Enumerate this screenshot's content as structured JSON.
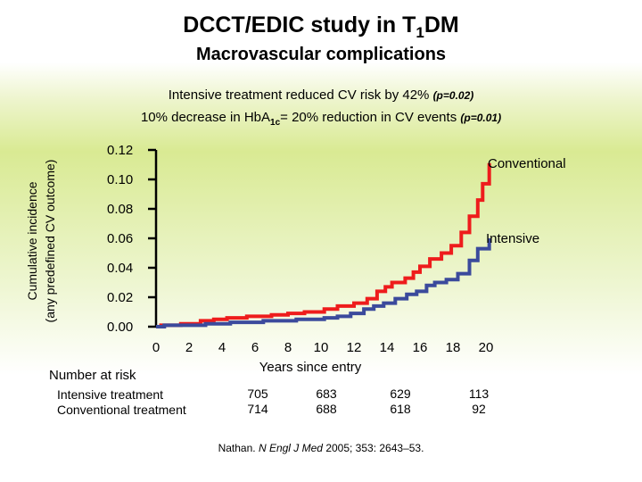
{
  "header": {
    "title_main": "DCCT/EDIC study in T",
    "title_sub": "1",
    "title_end": "DM",
    "subtitle": "Macrovascular complications"
  },
  "notes": {
    "line1_main": "Intensive treatment reduced CV risk by 42%",
    "line1_p": "(p=0.02)",
    "line2_a": "10% decrease in HbA",
    "line2_sub": "1c",
    "line2_b": "= 20% reduction in CV events",
    "line2_p": "(p=0.01)"
  },
  "colors": {
    "conventional": "#ee1c1c",
    "intensive": "#3b4a9c",
    "axis": "#000000"
  },
  "chart_data": {
    "type": "line",
    "ylabel_line1": "Cumulative incidence",
    "ylabel_line2": "(any predefined CV outcome)",
    "xlabel": "Years since entry",
    "xlim": [
      0,
      20
    ],
    "ylim": [
      0,
      0.12
    ],
    "x_ticks": [
      "0",
      "2",
      "4",
      "6",
      "8",
      "10",
      "12",
      "14",
      "16",
      "18",
      "20"
    ],
    "y_ticks": [
      "0.00",
      "0.02",
      "0.04",
      "0.06",
      "0.08",
      "0.10",
      "0.12"
    ],
    "series": [
      {
        "name": "Conventional",
        "color": "#ee1c1c",
        "points": [
          [
            0,
            0
          ],
          [
            0.3,
            0
          ],
          [
            0.3,
            0.001
          ],
          [
            1.5,
            0.001
          ],
          [
            1.5,
            0.002
          ],
          [
            2.7,
            0.002
          ],
          [
            2.7,
            0.004
          ],
          [
            3.5,
            0.004
          ],
          [
            3.5,
            0.005
          ],
          [
            4.3,
            0.005
          ],
          [
            4.3,
            0.006
          ],
          [
            5.5,
            0.006
          ],
          [
            5.5,
            0.007
          ],
          [
            7.0,
            0.007
          ],
          [
            7.0,
            0.008
          ],
          [
            8.0,
            0.008
          ],
          [
            8.0,
            0.009
          ],
          [
            9.0,
            0.009
          ],
          [
            9.0,
            0.01
          ],
          [
            10.2,
            0.01
          ],
          [
            10.2,
            0.012
          ],
          [
            11.0,
            0.012
          ],
          [
            11.0,
            0.014
          ],
          [
            12.0,
            0.014
          ],
          [
            12.0,
            0.016
          ],
          [
            12.8,
            0.016
          ],
          [
            12.8,
            0.019
          ],
          [
            13.4,
            0.019
          ],
          [
            13.4,
            0.024
          ],
          [
            13.9,
            0.024
          ],
          [
            13.9,
            0.027
          ],
          [
            14.3,
            0.027
          ],
          [
            14.3,
            0.03
          ],
          [
            15.1,
            0.03
          ],
          [
            15.1,
            0.033
          ],
          [
            15.6,
            0.033
          ],
          [
            15.6,
            0.037
          ],
          [
            16.0,
            0.037
          ],
          [
            16.0,
            0.041
          ],
          [
            16.6,
            0.041
          ],
          [
            16.6,
            0.046
          ],
          [
            17.3,
            0.046
          ],
          [
            17.3,
            0.05
          ],
          [
            17.9,
            0.05
          ],
          [
            17.9,
            0.055
          ],
          [
            18.5,
            0.055
          ],
          [
            18.5,
            0.064
          ],
          [
            19.0,
            0.064
          ],
          [
            19.0,
            0.075
          ],
          [
            19.5,
            0.075
          ],
          [
            19.5,
            0.086
          ],
          [
            19.8,
            0.086
          ],
          [
            19.8,
            0.097
          ],
          [
            20.2,
            0.097
          ],
          [
            20.2,
            0.111
          ]
        ]
      },
      {
        "name": "Intensive",
        "color": "#3b4a9c",
        "points": [
          [
            0,
            0
          ],
          [
            0.5,
            0
          ],
          [
            0.5,
            0.001
          ],
          [
            3.0,
            0.001
          ],
          [
            3.0,
            0.002
          ],
          [
            4.5,
            0.002
          ],
          [
            4.5,
            0.003
          ],
          [
            6.5,
            0.003
          ],
          [
            6.5,
            0.004
          ],
          [
            8.5,
            0.004
          ],
          [
            8.5,
            0.005
          ],
          [
            10.2,
            0.005
          ],
          [
            10.2,
            0.006
          ],
          [
            11.0,
            0.006
          ],
          [
            11.0,
            0.007
          ],
          [
            11.8,
            0.007
          ],
          [
            11.8,
            0.009
          ],
          [
            12.6,
            0.009
          ],
          [
            12.6,
            0.012
          ],
          [
            13.2,
            0.012
          ],
          [
            13.2,
            0.014
          ],
          [
            13.8,
            0.014
          ],
          [
            13.8,
            0.016
          ],
          [
            14.5,
            0.016
          ],
          [
            14.5,
            0.019
          ],
          [
            15.2,
            0.019
          ],
          [
            15.2,
            0.022
          ],
          [
            15.8,
            0.022
          ],
          [
            15.8,
            0.024
          ],
          [
            16.4,
            0.024
          ],
          [
            16.4,
            0.028
          ],
          [
            16.9,
            0.028
          ],
          [
            16.9,
            0.03
          ],
          [
            17.6,
            0.03
          ],
          [
            17.6,
            0.032
          ],
          [
            18.3,
            0.032
          ],
          [
            18.3,
            0.036
          ],
          [
            19.0,
            0.036
          ],
          [
            19.0,
            0.045
          ],
          [
            19.5,
            0.045
          ],
          [
            19.5,
            0.053
          ],
          [
            20.2,
            0.053
          ],
          [
            20.2,
            0.06
          ]
        ]
      }
    ],
    "annotations": {
      "conventional_label": "Conventional",
      "intensive_label": "Intensive"
    }
  },
  "risk_table": {
    "heading": "Number at risk",
    "row_labels": [
      "Intensive treatment",
      "Conventional treatment"
    ],
    "columns": [
      {
        "year": 6,
        "intensive": "705",
        "conventional": "714"
      },
      {
        "year": 10,
        "intensive": "683",
        "conventional": "688"
      },
      {
        "year": 15,
        "intensive": "629",
        "conventional": "618"
      },
      {
        "year": 20,
        "intensive": "113",
        "conventional": "92"
      }
    ]
  },
  "citation": {
    "author": "Nathan. ",
    "journal": "N Engl J Med",
    "ref": " 2005; 353: 2643–53."
  }
}
